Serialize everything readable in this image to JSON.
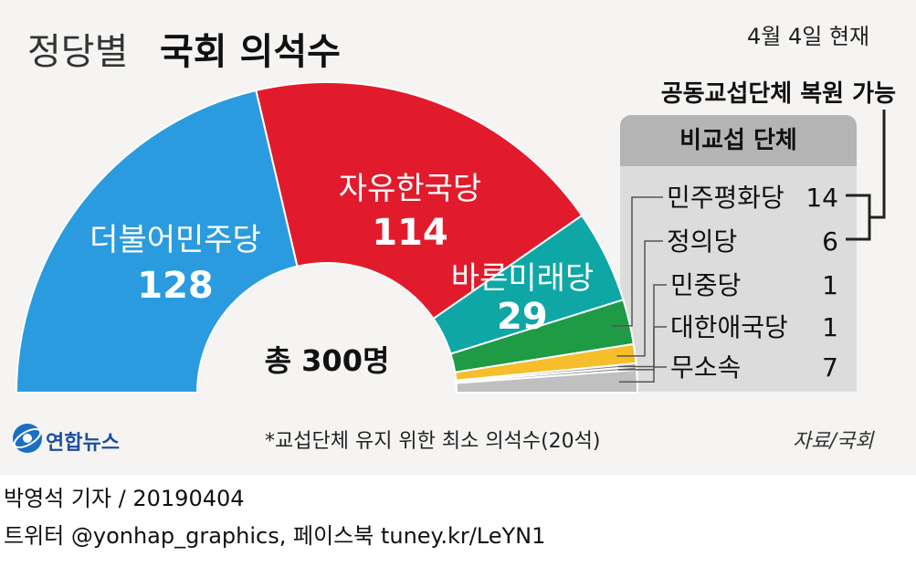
{
  "title": {
    "light": "정당별",
    "bold": "국회 의석수"
  },
  "as_of": "4월 4일 현재",
  "restore_note": "공동교섭단체 복원 가능",
  "panel_title": "비교섭 단체",
  "total_label": "총 300명",
  "footnote": "*교섭단체 유지 위한 최소 의석수(20석)",
  "source": "자료/국회",
  "logo": {
    "text": "연합뉴스",
    "icon": "yonhap-logo-icon"
  },
  "byline": "박영석 기자 / 20190404",
  "social": "트위터 @yonhap_graphics, 페이스북 tuney.kr/LeYN1",
  "colors": {
    "background": "#f5f4f2",
    "bracket": "#222222"
  },
  "chart_data": {
    "type": "pie",
    "total": 300,
    "slices": [
      {
        "name": "더불어민주당",
        "value": 128,
        "color": "#2b9be0"
      },
      {
        "name": "자유한국당",
        "value": 114,
        "color": "#e21b2c"
      },
      {
        "name": "바른미래당",
        "value": 29,
        "color": "#0fa6a6"
      },
      {
        "name": "민주평화당",
        "value": 14,
        "color": "#1f9a45"
      },
      {
        "name": "정의당",
        "value": 6,
        "color": "#f5be2a"
      },
      {
        "name": "민중당",
        "value": 1,
        "color": "#8a8a8a"
      },
      {
        "name": "대한애국당",
        "value": 1,
        "color": "#8a8a8a"
      },
      {
        "name": "무소속",
        "value": 7,
        "color": "#c0c0c0"
      }
    ]
  }
}
